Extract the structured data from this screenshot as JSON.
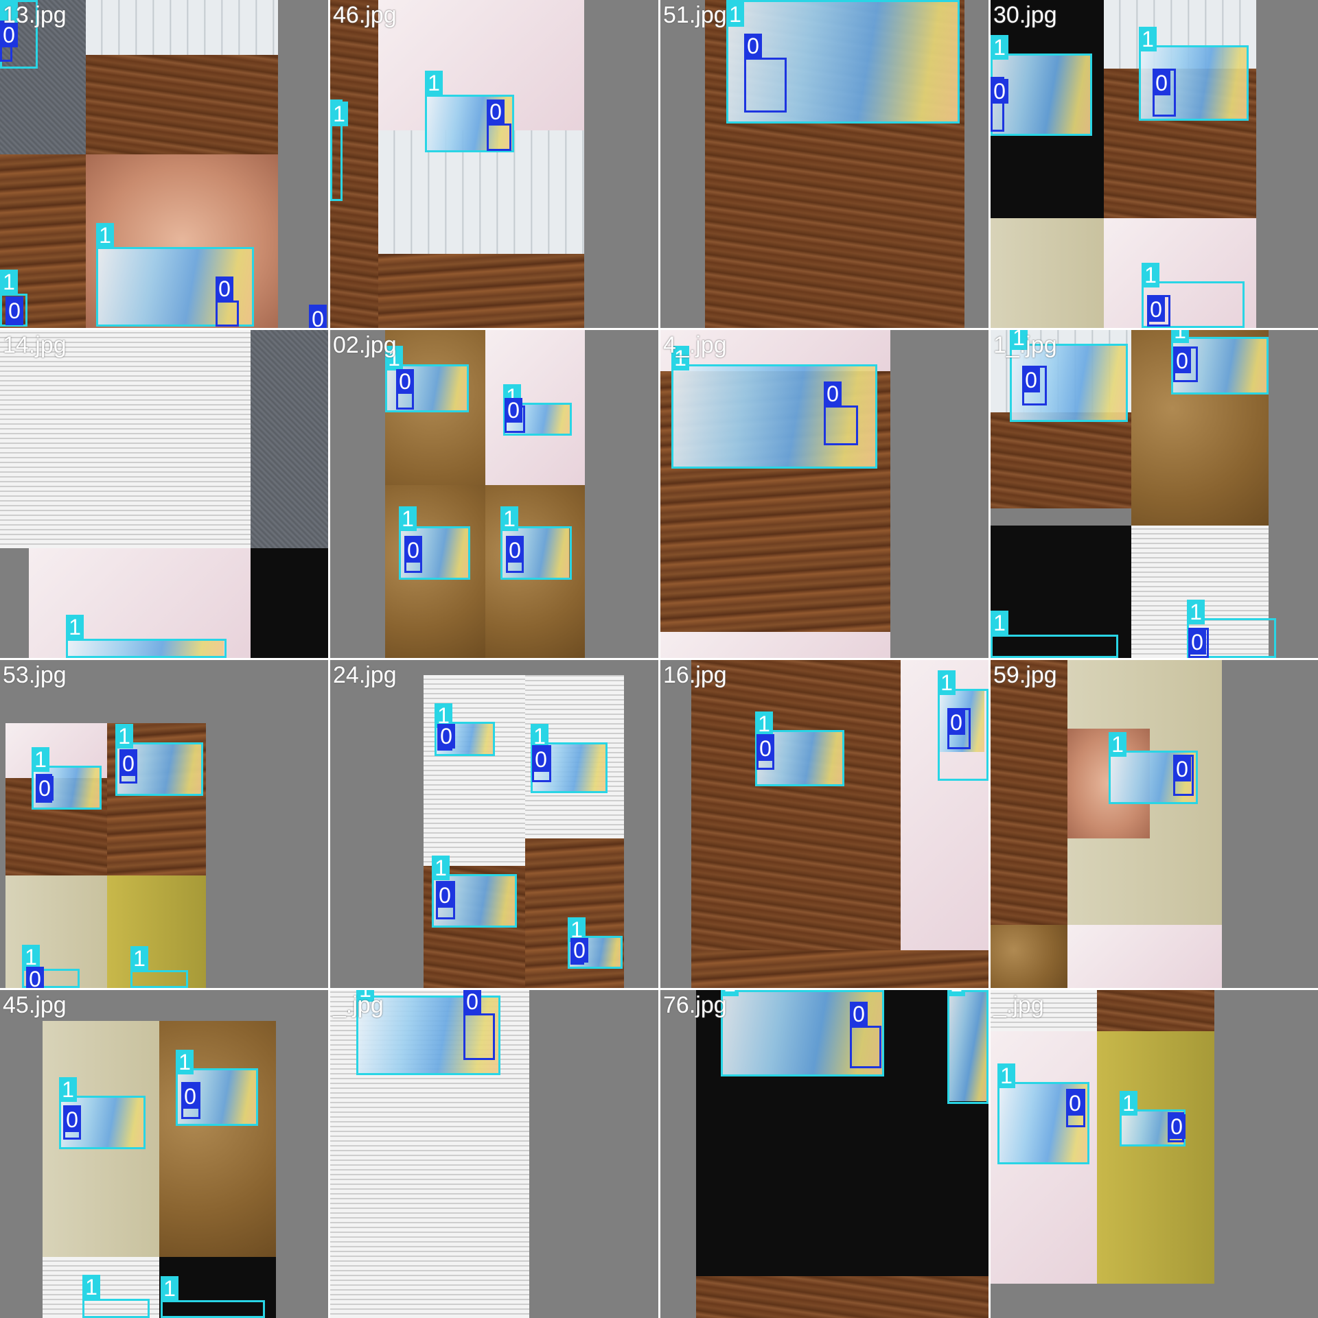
{
  "colors": {
    "class_1": "#29d5e5",
    "class_0": "#1d35e0",
    "pad": "#7f7f7f"
  },
  "tiles": [
    {
      "filename": "13.jpg",
      "labels": [
        "1",
        "1",
        "0",
        "0",
        "1",
        "0",
        "0"
      ]
    },
    {
      "filename": "46.jpg",
      "labels": [
        "1",
        "1",
        "0"
      ]
    },
    {
      "filename": "51.jpg",
      "labels": [
        "1",
        "0"
      ]
    },
    {
      "filename": "30.jpg",
      "labels": [
        "1",
        "0",
        "1",
        "0",
        "1",
        "0"
      ]
    },
    {
      "filename": "14.jpg",
      "labels": [
        "1"
      ]
    },
    {
      "filename": "02.jpg",
      "labels": [
        "1",
        "0",
        "1",
        "0",
        "1",
        "0",
        "1",
        "0"
      ]
    },
    {
      "filename": "4_.jpg",
      "labels": [
        "1",
        "0"
      ]
    },
    {
      "filename": "1_.jpg",
      "labels": [
        "1",
        "0",
        "1",
        "0",
        "1",
        "1",
        "0"
      ]
    },
    {
      "filename": "53.jpg",
      "labels": [
        "1",
        "0",
        "1",
        "0",
        "1",
        "0",
        "1"
      ]
    },
    {
      "filename": "24.jpg",
      "labels": [
        "1",
        "0",
        "1",
        "0",
        "1",
        "0",
        "1",
        "0"
      ]
    },
    {
      "filename": "16.jpg",
      "labels": [
        "1",
        "0",
        "1",
        "0"
      ]
    },
    {
      "filename": "59.jpg",
      "labels": [
        "1",
        "0"
      ]
    },
    {
      "filename": "45.jpg",
      "labels": [
        "1",
        "0",
        "1",
        "0",
        "1",
        "1"
      ]
    },
    {
      "filename": "_.jpg",
      "labels": [
        "1",
        "0"
      ]
    },
    {
      "filename": "76.jpg",
      "labels": [
        "1",
        "0",
        "1"
      ]
    },
    {
      "filename": "_.jpg",
      "labels": [
        "1",
        "0",
        "1",
        "0"
      ]
    }
  ]
}
